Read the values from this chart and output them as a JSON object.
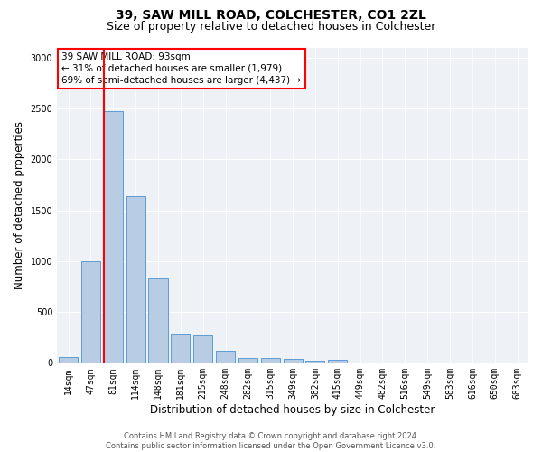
{
  "title_line1": "39, SAW MILL ROAD, COLCHESTER, CO1 2ZL",
  "title_line2": "Size of property relative to detached houses in Colchester",
  "xlabel": "Distribution of detached houses by size in Colchester",
  "ylabel": "Number of detached properties",
  "categories": [
    "14sqm",
    "47sqm",
    "81sqm",
    "114sqm",
    "148sqm",
    "181sqm",
    "215sqm",
    "248sqm",
    "282sqm",
    "315sqm",
    "349sqm",
    "382sqm",
    "415sqm",
    "449sqm",
    "482sqm",
    "516sqm",
    "549sqm",
    "583sqm",
    "616sqm",
    "650sqm",
    "683sqm"
  ],
  "values": [
    55,
    1000,
    2470,
    1640,
    830,
    280,
    270,
    120,
    50,
    45,
    35,
    25,
    30,
    0,
    0,
    0,
    0,
    0,
    0,
    0,
    0
  ],
  "bar_color": "#b8cce4",
  "bar_edge_color": "#5b9bd5",
  "vline_color": "red",
  "vline_x_index": 2,
  "annotation_text_line1": "39 SAW MILL ROAD: 93sqm",
  "annotation_text_line2": "← 31% of detached houses are smaller (1,979)",
  "annotation_text_line3": "69% of semi-detached houses are larger (4,437) →",
  "annotation_box_color": "white",
  "annotation_box_edgecolor": "red",
  "ylim": [
    0,
    3100
  ],
  "yticks": [
    0,
    500,
    1000,
    1500,
    2000,
    2500,
    3000
  ],
  "background_color": "#eef2f7",
  "footer_line1": "Contains HM Land Registry data © Crown copyright and database right 2024.",
  "footer_line2": "Contains public sector information licensed under the Open Government Licence v3.0.",
  "title_fontsize": 10,
  "subtitle_fontsize": 9,
  "tick_fontsize": 7,
  "ylabel_fontsize": 8.5,
  "xlabel_fontsize": 8.5,
  "annotation_fontsize": 7.5
}
